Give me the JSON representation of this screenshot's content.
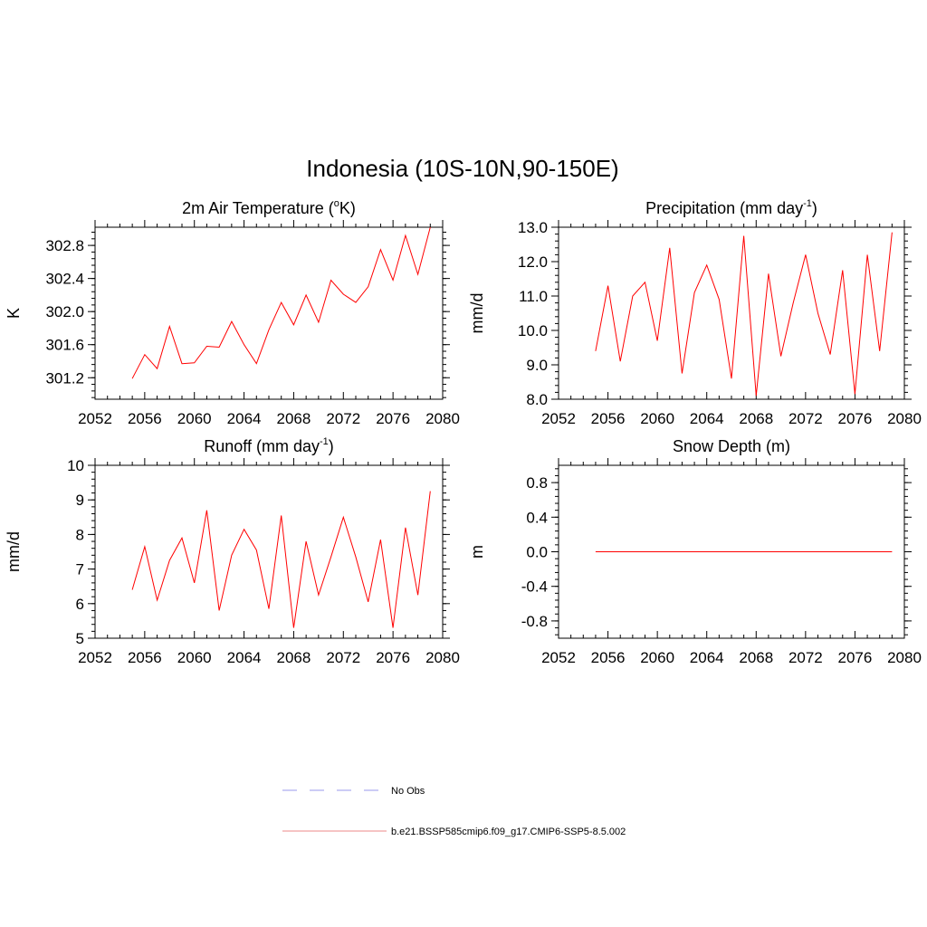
{
  "figure_title": "Indonesia (10S-10N,90-150E)",
  "chart_data": [
    {
      "id": "p-temp",
      "type": "line",
      "title_main": "2m Air Temperature (",
      "title_sup": "o",
      "title_after": "K)",
      "ylabel": "K",
      "xlim": [
        2052,
        2080
      ],
      "ylim": [
        300.94,
        303.02
      ],
      "xticks": [
        2052,
        2056,
        2060,
        2064,
        2068,
        2072,
        2076,
        2080
      ],
      "yticks": [
        301.2,
        301.6,
        302.0,
        302.4,
        302.8
      ],
      "ytick_labels": [
        "301.2",
        "301.6",
        "302.0",
        "302.4",
        "302.8"
      ],
      "x": [
        2055,
        2056,
        2057,
        2058,
        2059,
        2060,
        2061,
        2062,
        2063,
        2064,
        2065,
        2066,
        2067,
        2068,
        2069,
        2070,
        2071,
        2072,
        2073,
        2074,
        2075,
        2076,
        2077,
        2078,
        2079
      ],
      "values": [
        301.19,
        301.48,
        301.31,
        301.82,
        301.37,
        301.38,
        301.58,
        301.57,
        301.88,
        301.6,
        301.37,
        301.78,
        302.11,
        301.84,
        302.2,
        301.87,
        302.38,
        302.21,
        302.11,
        302.3,
        302.75,
        302.38,
        302.92,
        302.45,
        303.02
      ]
    },
    {
      "id": "p-precip",
      "type": "line",
      "title_main": "Precipitation (mm day",
      "title_sup": "-1",
      "title_after": ")",
      "ylabel": "mm/d",
      "xlim": [
        2052,
        2080
      ],
      "ylim": [
        8.0,
        13.0
      ],
      "xticks": [
        2052,
        2056,
        2060,
        2064,
        2068,
        2072,
        2076,
        2080
      ],
      "yticks": [
        8.0,
        9.0,
        10.0,
        11.0,
        12.0,
        13.0
      ],
      "ytick_labels": [
        "8.0",
        "9.0",
        "10.0",
        "11.0",
        "12.0",
        "13.0"
      ],
      "x": [
        2055,
        2056,
        2057,
        2058,
        2059,
        2060,
        2061,
        2062,
        2063,
        2064,
        2065,
        2066,
        2067,
        2068,
        2069,
        2070,
        2071,
        2072,
        2073,
        2074,
        2075,
        2076,
        2077,
        2078,
        2079
      ],
      "values": [
        9.4,
        11.3,
        9.1,
        11.0,
        11.4,
        9.7,
        12.4,
        8.75,
        11.1,
        11.9,
        10.9,
        8.6,
        12.75,
        8.1,
        11.65,
        9.25,
        10.8,
        12.2,
        10.5,
        9.3,
        11.75,
        8.15,
        12.2,
        9.4,
        12.85
      ]
    },
    {
      "id": "p-runoff",
      "type": "line",
      "title_main": "Runoff (mm day",
      "title_sup": "-1",
      "title_after": ")",
      "ylabel": "mm/d",
      "xlim": [
        2052,
        2080
      ],
      "ylim": [
        5,
        10
      ],
      "xticks": [
        2052,
        2056,
        2060,
        2064,
        2068,
        2072,
        2076,
        2080
      ],
      "yticks": [
        5,
        6,
        7,
        8,
        9,
        10
      ],
      "ytick_labels": [
        "5",
        "6",
        "7",
        "8",
        "9",
        "10"
      ],
      "x": [
        2055,
        2056,
        2057,
        2058,
        2059,
        2060,
        2061,
        2062,
        2063,
        2064,
        2065,
        2066,
        2067,
        2068,
        2069,
        2070,
        2071,
        2072,
        2073,
        2074,
        2075,
        2076,
        2077,
        2078,
        2079
      ],
      "values": [
        6.4,
        7.65,
        6.1,
        7.25,
        7.9,
        6.6,
        8.7,
        5.8,
        7.4,
        8.15,
        7.55,
        5.85,
        8.55,
        5.3,
        7.8,
        6.25,
        7.35,
        8.5,
        7.35,
        6.05,
        7.85,
        5.3,
        8.2,
        6.25,
        9.25
      ]
    },
    {
      "id": "p-snow",
      "type": "line",
      "title_main": "Snow Depth (m)",
      "title_sup": "",
      "title_after": "",
      "ylabel": "m",
      "xlim": [
        2052,
        2080
      ],
      "ylim": [
        -1.0,
        1.0
      ],
      "xticks": [
        2052,
        2056,
        2060,
        2064,
        2068,
        2072,
        2076,
        2080
      ],
      "yticks": [
        -0.8,
        -0.4,
        0.0,
        0.4,
        0.8
      ],
      "ytick_labels": [
        "-0.8",
        "-0.4",
        "0.0",
        "0.4",
        "0.8"
      ],
      "x": [
        2055,
        2056,
        2057,
        2058,
        2059,
        2060,
        2061,
        2062,
        2063,
        2064,
        2065,
        2066,
        2067,
        2068,
        2069,
        2070,
        2071,
        2072,
        2073,
        2074,
        2075,
        2076,
        2077,
        2078,
        2079
      ],
      "values": [
        0,
        0,
        0,
        0,
        0,
        0,
        0,
        0,
        0,
        0,
        0,
        0,
        0,
        0,
        0,
        0,
        0,
        0,
        0,
        0,
        0,
        0,
        0,
        0,
        0
      ]
    }
  ],
  "legend": [
    {
      "label": "No Obs",
      "color": "#9999ee",
      "style": "dashed"
    },
    {
      "label": "b.e21.BSSP585cmip6.f09_g17.CMIP6-SSP5-8.5.002",
      "color": "#ee8888",
      "style": "solid"
    }
  ],
  "colors": {
    "series": "#ff0000",
    "axes": "#000000"
  }
}
